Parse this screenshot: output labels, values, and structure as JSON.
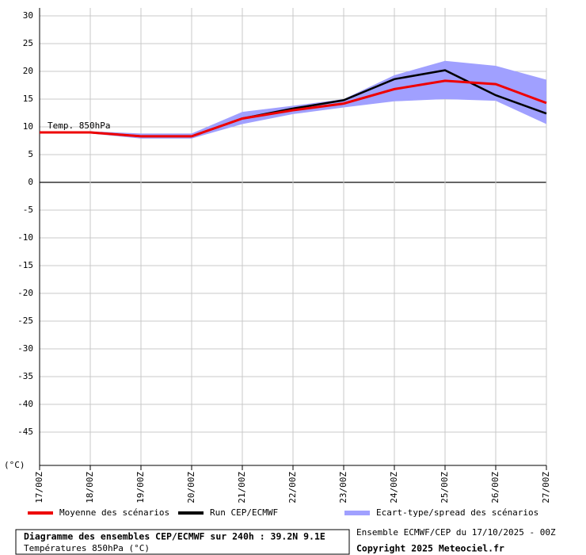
{
  "chart_data": {
    "type": "line",
    "annotation": "Temp. 850hPa",
    "y_unit": "(°C)",
    "categories": [
      "17/00Z",
      "18/00Z",
      "19/00Z",
      "20/00Z",
      "21/00Z",
      "22/00Z",
      "23/00Z",
      "24/00Z",
      "25/00Z",
      "26/00Z",
      "27/00Z"
    ],
    "ylim": [
      -51,
      30
    ],
    "yticks": [
      30,
      25,
      20,
      15,
      10,
      5,
      0,
      -5,
      -10,
      -15,
      -20,
      -25,
      -30,
      -35,
      -40,
      -45
    ],
    "grid": true,
    "series": [
      {
        "name": "Moyenne des scénarios",
        "color": "#ee0000",
        "values": [
          9,
          9,
          8.3,
          8.3,
          11.5,
          13,
          14.2,
          16.8,
          18.3,
          17.7,
          14.3
        ]
      },
      {
        "name": "Run CEP/ECMWF",
        "color": "#000000",
        "values": [
          9,
          9,
          8.3,
          8.3,
          11.5,
          13.3,
          14.8,
          18.6,
          20.2,
          15.7,
          12.4
        ]
      },
      {
        "name": "Ecart-type/spread des scénarios",
        "color": "#a0a0ff",
        "high": [
          9.2,
          9.2,
          8.8,
          8.8,
          12.7,
          13.8,
          15,
          19.3,
          21.9,
          21,
          18.5
        ],
        "low": [
          8.8,
          8.8,
          7.9,
          7.9,
          10.5,
          12.3,
          13.5,
          14.6,
          15,
          14.7,
          10.5
        ]
      }
    ],
    "footer": {
      "title": "Diagramme des ensembles CEP/ECMWF sur 240h : 39.2N 9.1E",
      "subtitle": "Températures 850hPa (°C)",
      "run": "Ensemble ECMWF/CEP du 17/10/2025 - 00Z",
      "copyright": "Copyright 2025 Meteociel.fr"
    }
  }
}
